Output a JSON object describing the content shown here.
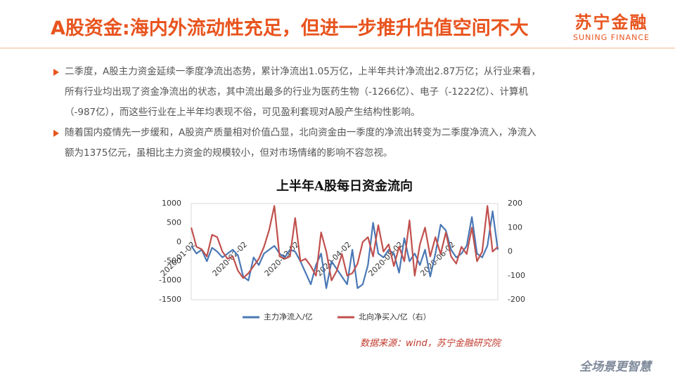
{
  "header": {
    "title": "A股资金:海内外流动性充足，但进一步推升估值空间不大",
    "logo_cn": "苏宁金融",
    "logo_en": "SUNING FINANCE"
  },
  "bullets": [
    {
      "lines": [
        "二季度，A股主力资金延续一季度净流出态势，累计净流出1.05万亿，上半年共计净流出2.87万亿；从行业来看，",
        "所有行业均出现了资金净流出的状态，其中流出最多的行业为医药生物（-1266亿）、电子（-1222亿）、计算机",
        "（-987亿），而这些行业在上半年均表现不俗，可见盈利套现对A股产生结构性影响。"
      ]
    },
    {
      "lines": [
        "随着国内疫情先一步缓和，A股资产质量相对价值凸显，北向资金由一季度的净流出转变为二季度净流入，净流入",
        "额为1375亿元，虽相比主力资金的规模较小，但对市场情绪的影响不容忽视。"
      ]
    }
  ],
  "chart_data": {
    "type": "line",
    "title": "上半年A股每日资金流向",
    "categories": [
      "2020-01-02",
      null,
      null,
      null,
      null,
      null,
      null,
      null,
      null,
      null,
      "2020-02-02",
      null,
      null,
      null,
      null,
      null,
      null,
      null,
      null,
      null,
      "2020-03-02",
      null,
      null,
      null,
      null,
      null,
      null,
      null,
      null,
      null,
      "2020-04-02",
      null,
      null,
      null,
      null,
      null,
      null,
      null,
      null,
      null,
      "2020-05-02",
      null,
      null,
      null,
      null,
      null,
      null,
      null,
      null,
      null,
      "2020-06-02",
      null,
      null,
      null,
      null,
      null,
      null,
      null,
      null,
      null
    ],
    "series": [
      {
        "name": "主力净流入/亿",
        "color": "#4a78b5",
        "values": [
          -100,
          -300,
          -200,
          -500,
          -150,
          -250,
          -400,
          -300,
          -200,
          -350,
          -900,
          -1000,
          -400,
          -600,
          -300,
          -200,
          -100,
          -300,
          -400,
          -200,
          -250,
          -500,
          -800,
          -1100,
          -600,
          -300,
          -1200,
          -500,
          -700,
          -900,
          -1100,
          -200,
          -1200,
          -1100,
          -600,
          500,
          -300,
          -400,
          -200,
          -300,
          -800,
          100,
          -500,
          -300,
          -600,
          -200,
          -900,
          -300,
          450,
          300,
          -200,
          -400,
          -300,
          -100,
          650,
          -300,
          -400,
          -100,
          800,
          -200
        ]
      },
      {
        "name": "北向净买入/亿（右）",
        "color": "#c0504d",
        "axis": "y2",
        "values": [
          100,
          20,
          10,
          -20,
          70,
          60,
          0,
          -30,
          -20,
          -80,
          -110,
          -90,
          -60,
          -30,
          20,
          90,
          190,
          -20,
          -30,
          -20,
          140,
          -40,
          -30,
          -60,
          -100,
          80,
          0,
          -120,
          -80,
          -10,
          -100,
          -90,
          -50,
          40,
          60,
          -20,
          110,
          0,
          30,
          -60,
          20,
          -40,
          130,
          -100,
          30,
          100,
          -20,
          60,
          -10,
          80,
          -20,
          -50,
          20,
          -10,
          100,
          -40,
          0,
          190,
          0,
          20
        ]
      }
    ],
    "ylim": [
      -1500,
      1000
    ],
    "yticks": [
      -1500,
      -1000,
      -500,
      0,
      500,
      1000
    ],
    "y2lim": [
      -200,
      200
    ],
    "y2ticks": [
      -200,
      -100,
      0,
      100,
      200
    ],
    "grid": false,
    "legend": "bottom"
  },
  "source": "数据来源：wind，苏宁金融研究院",
  "footer": "全场景更智慧"
}
